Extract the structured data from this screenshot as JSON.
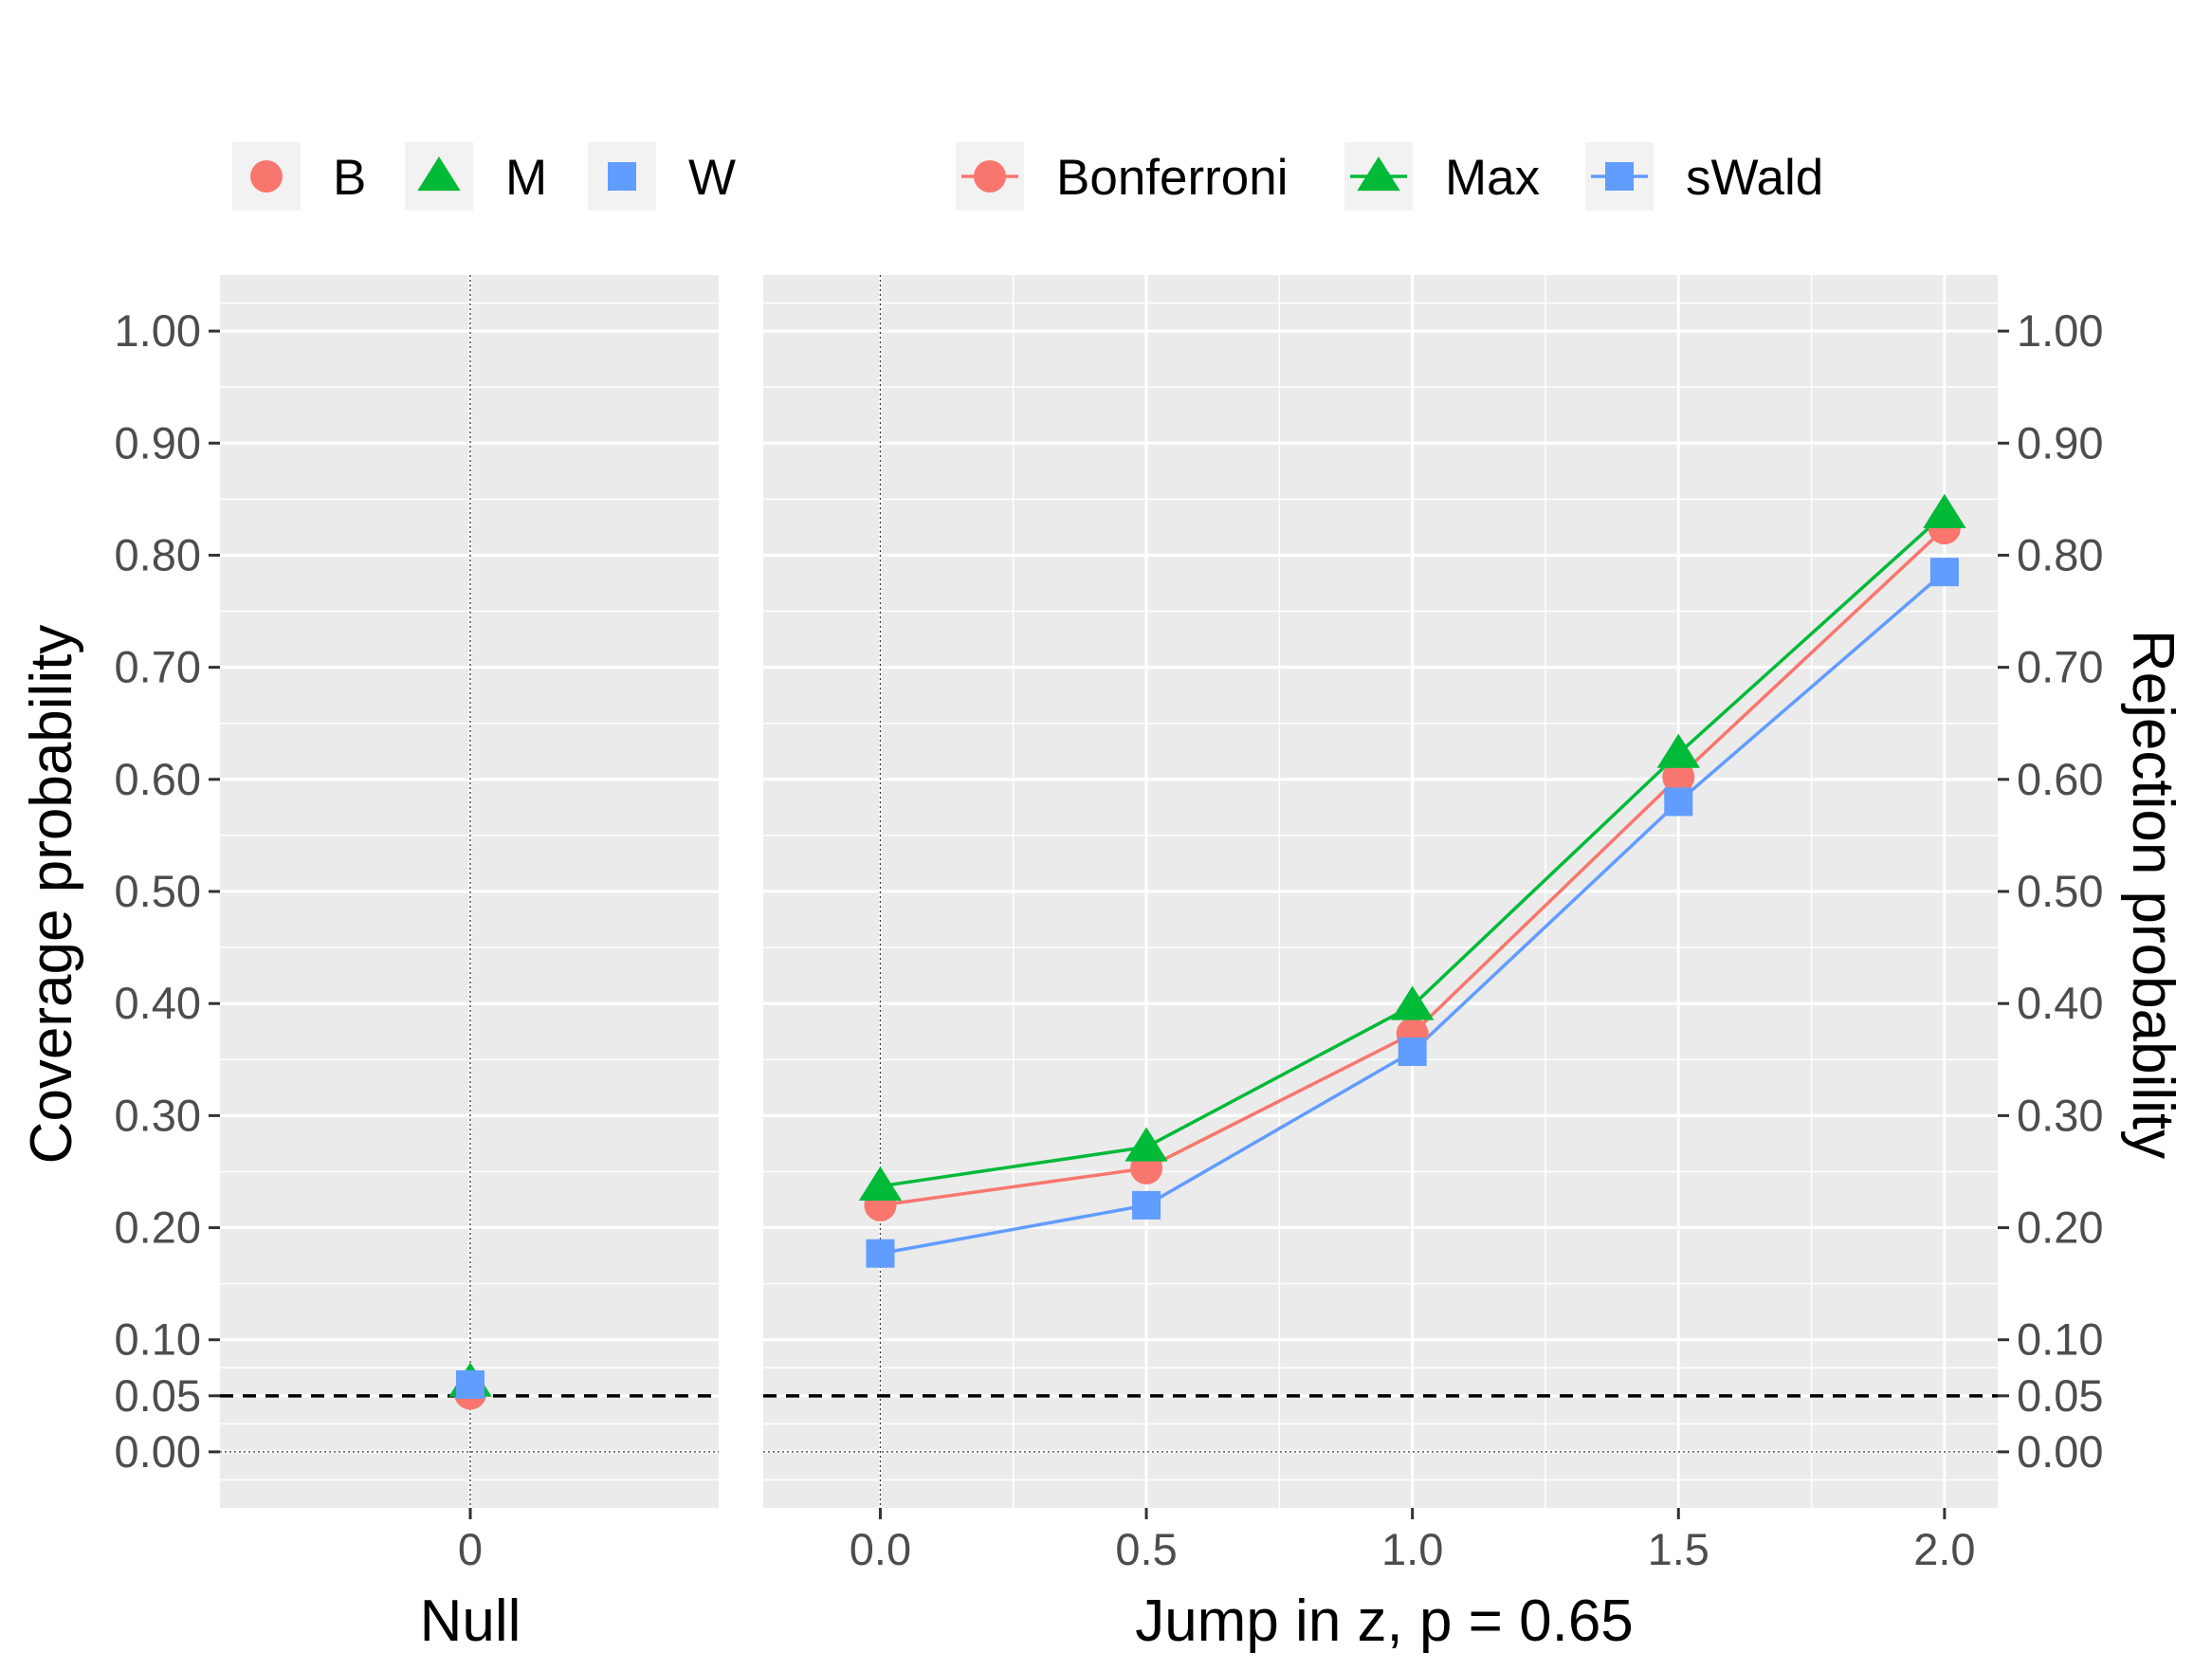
{
  "colors": {
    "bonferroni": "#F8766D",
    "max": "#00BA38",
    "swald": "#619CFF",
    "panel_bg": "#EBEBEB",
    "legend_key_bg": "#F2F2F2",
    "grid": "#FFFFFF",
    "tick_text": "#4D4D4D"
  },
  "legend_left": {
    "items": [
      {
        "label": "B",
        "shape": "circle",
        "color_key": "bonferroni"
      },
      {
        "label": "M",
        "shape": "triangle",
        "color_key": "max"
      },
      {
        "label": "W",
        "shape": "square",
        "color_key": "swald"
      }
    ]
  },
  "legend_right": {
    "items": [
      {
        "label": "Bonferroni",
        "shape": "circle",
        "color_key": "bonferroni"
      },
      {
        "label": "Max",
        "shape": "triangle",
        "color_key": "max"
      },
      {
        "label": "sWald",
        "shape": "square",
        "color_key": "swald"
      }
    ]
  },
  "chart_data": [
    {
      "type": "scatter",
      "xlabel": "Null",
      "ylabel": "Coverage probability",
      "x_ticks": [
        "0"
      ],
      "ylim": [
        -0.05,
        1.05
      ],
      "y_ticks": [
        "0.00",
        "0.05",
        "0.10",
        "0.20",
        "0.30",
        "0.40",
        "0.50",
        "0.60",
        "0.70",
        "0.80",
        "0.90",
        "1.00"
      ],
      "y_tick_values": [
        0.0,
        0.05,
        0.1,
        0.2,
        0.3,
        0.4,
        0.5,
        0.6,
        0.7,
        0.8,
        0.9,
        1.0
      ],
      "reference_line": {
        "y": 0.05,
        "style": "dashed"
      },
      "series": [
        {
          "name": "B",
          "color_key": "bonferroni",
          "shape": "circle",
          "x": [
            0
          ],
          "y": [
            0.052
          ]
        },
        {
          "name": "M",
          "color_key": "max",
          "shape": "triangle",
          "x": [
            0
          ],
          "y": [
            0.062
          ]
        },
        {
          "name": "W",
          "color_key": "swald",
          "shape": "square",
          "x": [
            0
          ],
          "y": [
            0.06
          ]
        }
      ]
    },
    {
      "type": "line",
      "xlabel": "Jump in z, p = 0.65",
      "ylabel": "Rejection probability",
      "x_ticks": [
        "0.0",
        "0.5",
        "1.0",
        "1.5",
        "2.0"
      ],
      "x_tick_values": [
        0.0,
        0.5,
        1.0,
        1.5,
        2.0
      ],
      "xlim": [
        -0.22,
        2.1
      ],
      "ylim": [
        -0.05,
        1.05
      ],
      "y_ticks": [
        "0.00",
        "0.05",
        "0.10",
        "0.20",
        "0.30",
        "0.40",
        "0.50",
        "0.60",
        "0.70",
        "0.80",
        "0.90",
        "1.00"
      ],
      "y_tick_values": [
        0.0,
        0.05,
        0.1,
        0.2,
        0.3,
        0.4,
        0.5,
        0.6,
        0.7,
        0.8,
        0.9,
        1.0
      ],
      "reference_line": {
        "y": 0.05,
        "style": "dashed"
      },
      "series": [
        {
          "name": "Bonferroni",
          "color_key": "bonferroni",
          "shape": "circle",
          "x": [
            0.0,
            0.5,
            1.0,
            1.5,
            2.0
          ],
          "y": [
            0.22,
            0.253,
            0.373,
            0.602,
            0.824
          ]
        },
        {
          "name": "Max",
          "color_key": "max",
          "shape": "triangle",
          "x": [
            0.0,
            0.5,
            1.0,
            1.5,
            2.0
          ],
          "y": [
            0.237,
            0.272,
            0.398,
            0.623,
            0.837
          ]
        },
        {
          "name": "sWald",
          "color_key": "swald",
          "shape": "square",
          "x": [
            0.0,
            0.5,
            1.0,
            1.5,
            2.0
          ],
          "y": [
            0.177,
            0.22,
            0.357,
            0.58,
            0.785
          ]
        }
      ]
    }
  ]
}
